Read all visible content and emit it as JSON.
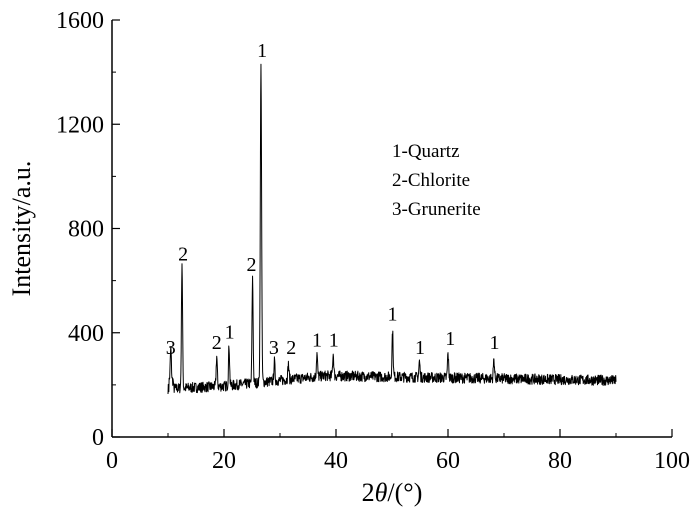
{
  "chart_data": {
    "type": "line",
    "xlabel_prefix": "2",
    "xlabel_symbol": "θ",
    "xlabel_suffix": "/(°)",
    "ylabel": "Intensity/a.u.",
    "xlim": [
      0,
      100
    ],
    "ylim": [
      0,
      1600
    ],
    "xticks": [
      0,
      20,
      40,
      60,
      80,
      100
    ],
    "yticks": [
      0,
      400,
      800,
      1200,
      1600
    ],
    "grid": false,
    "legend_position": "top-right",
    "legend": [
      "1-Quartz",
      "2-Chlorite",
      "3-Grunerite"
    ],
    "series": [
      {
        "x_range": [
          10,
          90
        ],
        "peaks": [
          {
            "x": 10.5,
            "y": 310
          },
          {
            "x": 12.5,
            "y": 670
          },
          {
            "x": 18.7,
            "y": 310
          },
          {
            "x": 20.9,
            "y": 350
          },
          {
            "x": 25.1,
            "y": 610
          },
          {
            "x": 26.6,
            "y": 1420
          },
          {
            "x": 29.0,
            "y": 290
          },
          {
            "x": 31.5,
            "y": 280
          },
          {
            "x": 36.6,
            "y": 320
          },
          {
            "x": 39.5,
            "y": 320
          },
          {
            "x": 50.1,
            "y": 410
          },
          {
            "x": 54.9,
            "y": 290
          },
          {
            "x": 60.0,
            "y": 320
          },
          {
            "x": 68.2,
            "y": 300
          }
        ]
      }
    ],
    "peak_labels": [
      {
        "text": "3",
        "x": 10.5,
        "y": 310
      },
      {
        "text": "2",
        "x": 12.7,
        "y": 670
      },
      {
        "text": "2",
        "x": 18.7,
        "y": 330
      },
      {
        "text": "1",
        "x": 21.0,
        "y": 370
      },
      {
        "text": "2",
        "x": 24.9,
        "y": 630
      },
      {
        "text": "1",
        "x": 26.8,
        "y": 1450
      },
      {
        "text": "3",
        "x": 28.9,
        "y": 310
      },
      {
        "text": "2",
        "x": 32.0,
        "y": 310
      },
      {
        "text": "1",
        "x": 36.6,
        "y": 340
      },
      {
        "text": "1",
        "x": 39.6,
        "y": 340
      },
      {
        "text": "1",
        "x": 50.1,
        "y": 440
      },
      {
        "text": "1",
        "x": 55.0,
        "y": 310
      },
      {
        "text": "1",
        "x": 60.4,
        "y": 345
      },
      {
        "text": "1",
        "x": 68.3,
        "y": 330
      }
    ]
  }
}
